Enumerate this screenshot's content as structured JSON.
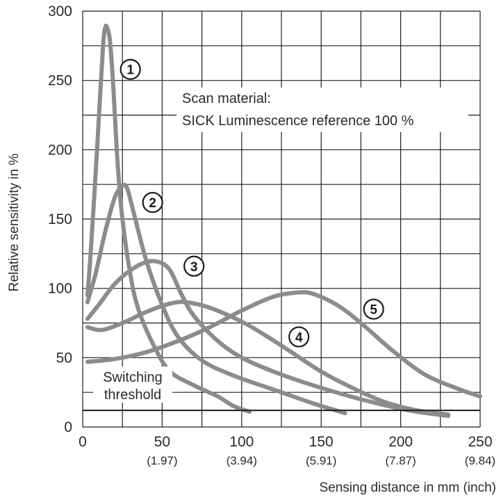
{
  "chart_data": {
    "type": "line",
    "title": "",
    "xlabel": "Sensing distance in mm (inch)",
    "ylabel": "Relative sensitivity in %",
    "xlim": [
      0,
      250
    ],
    "ylim": [
      0,
      300
    ],
    "x_ticks": [
      {
        "value": 0,
        "label": "0",
        "sub": ""
      },
      {
        "value": 50,
        "label": "50",
        "sub": "(1.97)"
      },
      {
        "value": 100,
        "label": "100",
        "sub": "(3.94)"
      },
      {
        "value": 150,
        "label": "150",
        "sub": "(5.91)"
      },
      {
        "value": 200,
        "label": "200",
        "sub": "(7.87)"
      },
      {
        "value": 250,
        "label": "250",
        "sub": "(9.84)"
      }
    ],
    "y_ticks": [
      {
        "value": 0,
        "label": "0"
      },
      {
        "value": 50,
        "label": "50"
      },
      {
        "value": 100,
        "label": "100"
      },
      {
        "value": 150,
        "label": "150"
      },
      {
        "value": 200,
        "label": "200"
      },
      {
        "value": 250,
        "label": "250"
      },
      {
        "value": 300,
        "label": "300"
      }
    ],
    "grid": true,
    "threshold": {
      "value": 12,
      "label_line1": "Switching",
      "label_line2": "threshold"
    },
    "annotation": {
      "line1": "Scan material:",
      "line2": "SICK Luminescence reference 100 %"
    },
    "series_color": "#8c8c8c",
    "series": [
      {
        "marker": "1",
        "marker_at": [
          30,
          258
        ],
        "points": [
          [
            3,
            95
          ],
          [
            5,
            125
          ],
          [
            8,
            180
          ],
          [
            11,
            240
          ],
          [
            13,
            278
          ],
          [
            14,
            287
          ],
          [
            15,
            289
          ],
          [
            17,
            280
          ],
          [
            19,
            250
          ],
          [
            22,
            190
          ],
          [
            25,
            150
          ],
          [
            30,
            110
          ],
          [
            35,
            85
          ],
          [
            45,
            58
          ],
          [
            55,
            40
          ],
          [
            70,
            30
          ],
          [
            85,
            22
          ],
          [
            95,
            15
          ],
          [
            105,
            11
          ]
        ]
      },
      {
        "marker": "2",
        "marker_at": [
          44,
          162
        ],
        "points": [
          [
            3,
            90
          ],
          [
            8,
            110
          ],
          [
            14,
            140
          ],
          [
            20,
            165
          ],
          [
            25,
            174
          ],
          [
            28,
            172
          ],
          [
            32,
            155
          ],
          [
            40,
            120
          ],
          [
            50,
            88
          ],
          [
            60,
            65
          ],
          [
            75,
            48
          ],
          [
            95,
            37
          ],
          [
            120,
            27
          ],
          [
            145,
            17
          ],
          [
            165,
            10
          ]
        ]
      },
      {
        "marker": "3",
        "marker_at": [
          70,
          116
        ],
        "points": [
          [
            3,
            78
          ],
          [
            10,
            88
          ],
          [
            20,
            103
          ],
          [
            30,
            113
          ],
          [
            40,
            119
          ],
          [
            48,
            119
          ],
          [
            55,
            113
          ],
          [
            62,
            96
          ],
          [
            70,
            80
          ],
          [
            85,
            62
          ],
          [
            100,
            50
          ],
          [
            120,
            40
          ],
          [
            145,
            30
          ],
          [
            175,
            20
          ],
          [
            205,
            12
          ],
          [
            230,
            8
          ]
        ]
      },
      {
        "marker": "4",
        "marker_at": [
          136,
          65
        ],
        "points": [
          [
            3,
            72
          ],
          [
            12,
            70
          ],
          [
            25,
            75
          ],
          [
            40,
            83
          ],
          [
            55,
            89
          ],
          [
            65,
            90
          ],
          [
            80,
            86
          ],
          [
            100,
            76
          ],
          [
            115,
            66
          ],
          [
            130,
            55
          ],
          [
            150,
            40
          ],
          [
            170,
            28
          ],
          [
            190,
            18
          ],
          [
            210,
            12
          ],
          [
            230,
            9
          ]
        ]
      },
      {
        "marker": "5",
        "marker_at": [
          183,
          85
        ],
        "points": [
          [
            3,
            47
          ],
          [
            20,
            49
          ],
          [
            40,
            54
          ],
          [
            60,
            62
          ],
          [
            80,
            72
          ],
          [
            100,
            84
          ],
          [
            120,
            94
          ],
          [
            135,
            97
          ],
          [
            145,
            96
          ],
          [
            160,
            88
          ],
          [
            175,
            75
          ],
          [
            195,
            55
          ],
          [
            215,
            38
          ],
          [
            235,
            28
          ],
          [
            250,
            22
          ]
        ]
      }
    ]
  }
}
